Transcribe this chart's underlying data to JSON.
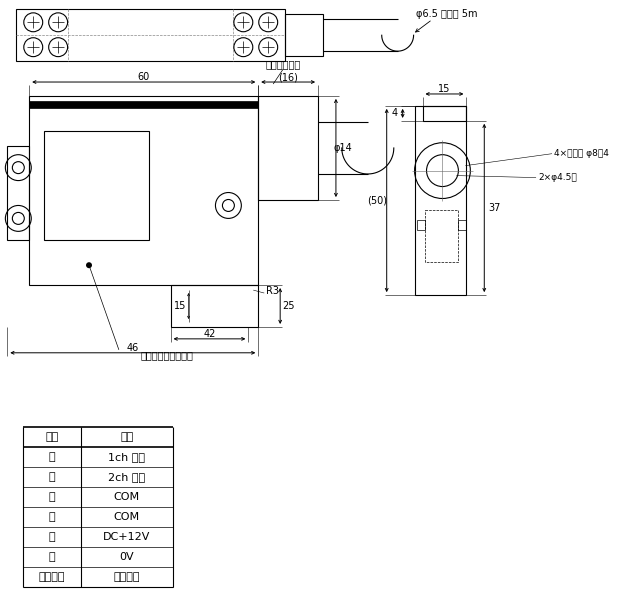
{
  "bg_color": "#ffffff",
  "line_color": "#000000",
  "table_headers": [
    "線色",
    "内容"
  ],
  "table_rows": [
    [
      "白",
      "1ch 出力"
    ],
    [
      "黄",
      "2ch 出力"
    ],
    [
      "茶",
      "COM"
    ],
    [
      "青",
      "COM"
    ],
    [
      "赤",
      "DC+12V"
    ],
    [
      "黒",
      "0V"
    ],
    [
      "シールド",
      "シールド"
    ]
  ],
  "annotation_material": "材質：アルミ、黒色",
  "annotation_gom": "ゴムパッキン",
  "annotation_cord": "φ6.5 コード 5m",
  "annotation_zagguri": "4×ザグリ φ8深4",
  "annotation_hole": "2×φ4.5穴",
  "dim_60": "60",
  "dim_16": "(16)",
  "dim_42": "42",
  "dim_46": "46",
  "dim_15_vert": "15",
  "dim_25": "25",
  "dim_phi14": "φ14",
  "dim_r3": "R3",
  "dim_4": "4",
  "dim_15_horiz": "15",
  "dim_50": "(50)",
  "dim_37": "37"
}
